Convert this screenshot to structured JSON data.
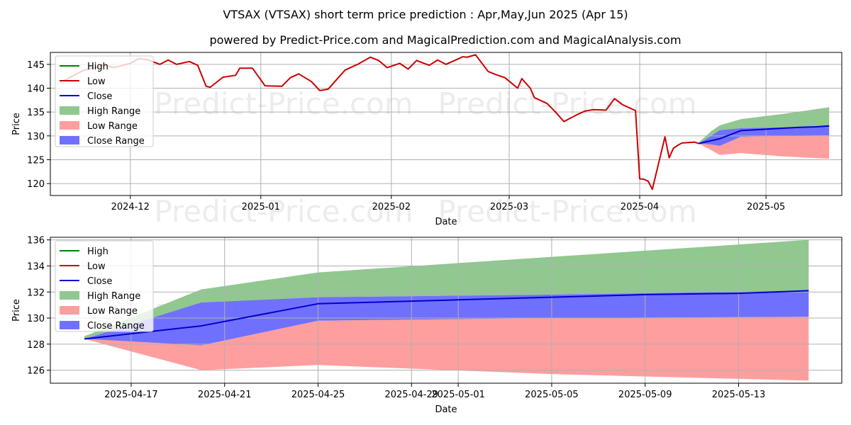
{
  "title_line1": "VTSAX (VTSAX) short term price prediction : Apr,May,Jun 2025 (Apr 15)",
  "title_line2": "powered by Predict-Price.com and MagicalPrediction.com and MagicalAnalysis.com",
  "watermark": "Predict-Price.com",
  "legend": [
    "High",
    "Low",
    "Close",
    "High Range",
    "Low Range",
    "Close Range"
  ],
  "colors": {
    "high": "#008000",
    "low": "#cc0000",
    "close": "#0000cc",
    "high_range": "#90c890",
    "low_range": "#ff9e9e",
    "close_range": "#7070ff",
    "grid": "#b0b0b0"
  },
  "chart_data": [
    {
      "type": "line",
      "xlabel": "Date",
      "ylabel": "Price",
      "xlim": [
        "2024-11-12",
        "2025-05-19"
      ],
      "ylim": [
        117.5,
        147.5
      ],
      "x_ticks": [
        "2024-12-01",
        "2025-01-01",
        "2025-02-01",
        "2025-03-01",
        "2025-04-01",
        "2025-05-01"
      ],
      "x_tick_labels": [
        "2024-12",
        "2025-01",
        "2025-02",
        "2025-03",
        "2025-04",
        "2025-05"
      ],
      "y_ticks": [
        120,
        125,
        130,
        135,
        140,
        145
      ],
      "grid": true,
      "legend_position": "top-left",
      "series": [
        {
          "name": "Low",
          "x": [
            "2024-11-15",
            "2024-11-20",
            "2024-11-25",
            "2024-11-27",
            "2024-12-01",
            "2024-12-03",
            "2024-12-05",
            "2024-12-08",
            "2024-12-10",
            "2024-12-12",
            "2024-12-15",
            "2024-12-17",
            "2024-12-19",
            "2024-12-20",
            "2024-12-23",
            "2024-12-26",
            "2024-12-27",
            "2024-12-30",
            "2025-01-02",
            "2025-01-06",
            "2025-01-08",
            "2025-01-10",
            "2025-01-13",
            "2025-01-15",
            "2025-01-17",
            "2025-01-21",
            "2025-01-24",
            "2025-01-27",
            "2025-01-29",
            "2025-01-31",
            "2025-02-03",
            "2025-02-05",
            "2025-02-07",
            "2025-02-10",
            "2025-02-12",
            "2025-02-14",
            "2025-02-18",
            "2025-02-19",
            "2025-02-21",
            "2025-02-24",
            "2025-02-26",
            "2025-02-28",
            "2025-03-03",
            "2025-03-04",
            "2025-03-06",
            "2025-03-07",
            "2025-03-10",
            "2025-03-12",
            "2025-03-14",
            "2025-03-17",
            "2025-03-19",
            "2025-03-21",
            "2025-03-24",
            "2025-03-26",
            "2025-03-28",
            "2025-03-31",
            "2025-04-01",
            "2025-04-02",
            "2025-04-03",
            "2025-04-04",
            "2025-04-07",
            "2025-04-08",
            "2025-04-09",
            "2025-04-10",
            "2025-04-11",
            "2025-04-14",
            "2025-04-15"
          ],
          "values": [
            141.5,
            143.8,
            144.8,
            144.3,
            145.2,
            146.2,
            146.0,
            145.0,
            145.9,
            145.0,
            145.6,
            144.8,
            140.4,
            140.2,
            142.3,
            142.7,
            144.2,
            144.2,
            140.5,
            140.4,
            142.2,
            143.0,
            141.4,
            139.5,
            139.8,
            143.8,
            145.0,
            146.5,
            145.8,
            144.3,
            145.2,
            144.0,
            145.8,
            144.8,
            145.9,
            145.0,
            146.6,
            146.5,
            147.0,
            143.5,
            142.8,
            142.2,
            140.0,
            142.0,
            140.0,
            138.0,
            136.8,
            135.0,
            133.0,
            134.4,
            135.2,
            135.5,
            135.4,
            137.8,
            136.5,
            135.3,
            121.0,
            120.9,
            120.5,
            118.8,
            129.8,
            125.4,
            127.4,
            128.0,
            128.5,
            128.7,
            128.4
          ]
        },
        {
          "name": "Close",
          "x": [
            "2025-04-15",
            "2025-04-20",
            "2025-04-25",
            "2025-05-01",
            "2025-05-05",
            "2025-05-09",
            "2025-05-13",
            "2025-05-16"
          ],
          "values": [
            128.4,
            129.4,
            131.1,
            131.4,
            131.6,
            131.8,
            131.9,
            132.1
          ]
        }
      ],
      "ranges": {
        "x": [
          "2025-04-15",
          "2025-04-18",
          "2025-04-20",
          "2025-04-25",
          "2025-05-05",
          "2025-05-16"
        ],
        "high_upper": [
          128.6,
          131.0,
          132.2,
          133.5,
          134.6,
          136.0
        ],
        "high_lower": [
          128.4,
          129.4,
          131.2,
          131.6,
          131.8,
          132.0
        ],
        "close_upper": [
          128.4,
          130.0,
          131.2,
          131.6,
          131.8,
          132.0
        ],
        "close_lower": [
          128.4,
          128.2,
          127.9,
          129.8,
          130.0,
          130.1
        ],
        "low_upper": [
          128.4,
          128.2,
          127.9,
          129.8,
          130.0,
          130.1
        ],
        "low_lower": [
          128.4,
          127.0,
          126.0,
          126.4,
          125.7,
          125.2
        ]
      }
    },
    {
      "type": "line",
      "xlabel": "Date",
      "ylabel": "Price",
      "xlim": [
        "2025-04-13T13:00",
        "2025-05-17T10:00"
      ],
      "ylim": [
        125.0,
        136.2
      ],
      "x_ticks": [
        "2025-04-17",
        "2025-04-21",
        "2025-04-25",
        "2025-04-29",
        "2025-05-01",
        "2025-05-05",
        "2025-05-09",
        "2025-05-13"
      ],
      "x_tick_labels": [
        "2025-04-17",
        "2025-04-21",
        "2025-04-25",
        "2025-04-29",
        "2025-05-01",
        "2025-05-05",
        "2025-05-09",
        "2025-05-13"
      ],
      "y_ticks": [
        126,
        128,
        130,
        132,
        134,
        136
      ],
      "grid": true,
      "legend_position": "top-left",
      "series": [
        {
          "name": "Close",
          "x": [
            "2025-04-15",
            "2025-04-20",
            "2025-04-25",
            "2025-05-01",
            "2025-05-05",
            "2025-05-09",
            "2025-05-13",
            "2025-05-16"
          ],
          "values": [
            128.4,
            129.4,
            131.1,
            131.4,
            131.6,
            131.8,
            131.9,
            132.1
          ]
        }
      ],
      "ranges": {
        "x": [
          "2025-04-15",
          "2025-04-20",
          "2025-04-25",
          "2025-05-05",
          "2025-05-16"
        ],
        "high_upper": [
          128.6,
          132.2,
          133.5,
          134.7,
          136.0
        ],
        "high_lower": [
          128.4,
          131.2,
          131.6,
          131.8,
          132.1
        ],
        "close_upper": [
          128.4,
          131.2,
          131.6,
          131.8,
          132.1
        ],
        "close_lower": [
          128.4,
          127.9,
          129.8,
          130.0,
          130.1
        ],
        "low_upper": [
          128.4,
          127.9,
          129.8,
          130.0,
          130.1
        ],
        "low_lower": [
          128.4,
          126.0,
          126.4,
          125.7,
          125.2
        ]
      }
    }
  ]
}
